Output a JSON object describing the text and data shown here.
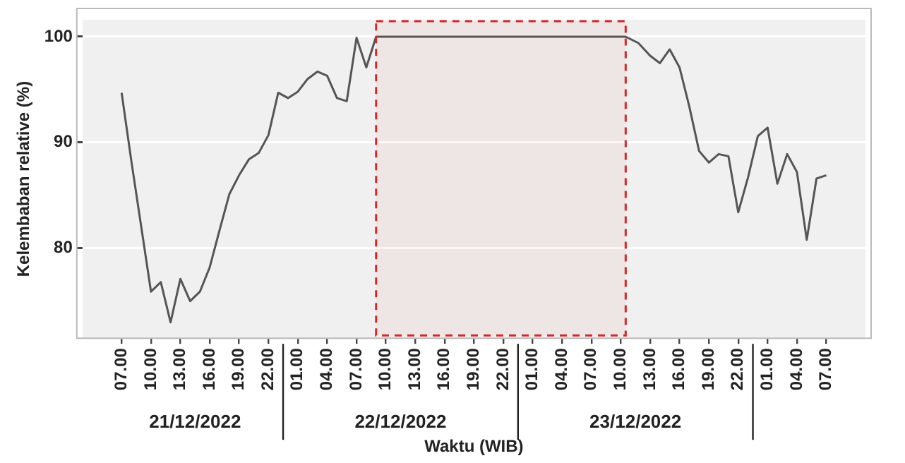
{
  "chart_data": {
    "type": "line",
    "xlabel": "Waktu (WIB)",
    "ylabel": "Kelembaban relative (%)",
    "x": [
      "2022-12-21T07:00",
      "2022-12-21T08:00",
      "2022-12-21T10:00",
      "2022-12-21T11:00",
      "2022-12-21T12:00",
      "2022-12-21T13:00",
      "2022-12-21T14:00",
      "2022-12-21T15:00",
      "2022-12-21T16:00",
      "2022-12-21T17:00",
      "2022-12-21T18:00",
      "2022-12-21T19:00",
      "2022-12-21T20:00",
      "2022-12-21T21:00",
      "2022-12-21T22:00",
      "2022-12-21T23:00",
      "2022-12-22T00:00",
      "2022-12-22T01:00",
      "2022-12-22T02:00",
      "2022-12-22T03:00",
      "2022-12-22T04:00",
      "2022-12-22T05:00",
      "2022-12-22T06:00",
      "2022-12-22T07:00",
      "2022-12-22T08:00",
      "2022-12-22T09:00",
      "2022-12-22T16:00",
      "2022-12-22T21:00",
      "2022-12-23T02:00",
      "2022-12-23T07:00",
      "2022-12-23T10:30",
      "2022-12-23T11:48",
      "2022-12-23T13:00",
      "2022-12-23T14:00",
      "2022-12-23T15:00",
      "2022-12-23T16:00",
      "2022-12-23T17:00",
      "2022-12-23T18:00",
      "2022-12-23T19:00",
      "2022-12-23T20:00",
      "2022-12-23T21:00",
      "2022-12-23T22:00",
      "2022-12-23T23:00",
      "2022-12-24T00:00",
      "2022-12-24T01:00",
      "2022-12-24T02:00",
      "2022-12-24T03:00",
      "2022-12-24T04:00",
      "2022-12-24T05:00",
      "2022-12-24T06:00",
      "2022-12-24T07:00"
    ],
    "series": [
      {
        "color": "#555555",
        "values": [
          94.7,
          88.2,
          75.9,
          76.8,
          73.0,
          77.1,
          75.0,
          75.9,
          78.2,
          81.7,
          85.1,
          86.9,
          88.4,
          89.0,
          90.7,
          94.7,
          94.2,
          94.8,
          96.0,
          96.7,
          96.3,
          94.2,
          93.9,
          99.9,
          97.1,
          100,
          100,
          100,
          100,
          100,
          100,
          99.4,
          98.2,
          97.5,
          98.8,
          97.1,
          93.4,
          89.2,
          88.1,
          88.9,
          88.7,
          83.4,
          86.7,
          90.6,
          91.4,
          86.1,
          88.9,
          87.2,
          80.8,
          86.6,
          86.9
        ]
      }
    ],
    "xlim": [
      "2022-12-21T03:00",
      "2022-12-24T11:00"
    ],
    "ylim": [
      71.5,
      101.6
    ],
    "xticks": [
      {
        "value": "2022-12-21T07:00",
        "label": "07.00"
      },
      {
        "value": "2022-12-21T10:00",
        "label": "10.00"
      },
      {
        "value": "2022-12-21T13:00",
        "label": "13.00"
      },
      {
        "value": "2022-12-21T16:00",
        "label": "16.00"
      },
      {
        "value": "2022-12-21T19:00",
        "label": "19.00"
      },
      {
        "value": "2022-12-21T22:00",
        "label": "22.00"
      },
      {
        "value": "2022-12-22T01:00",
        "label": "01.00"
      },
      {
        "value": "2022-12-22T04:00",
        "label": "04.00"
      },
      {
        "value": "2022-12-22T07:00",
        "label": "07.00"
      },
      {
        "value": "2022-12-22T10:00",
        "label": "10.00"
      },
      {
        "value": "2022-12-22T13:00",
        "label": "13.00"
      },
      {
        "value": "2022-12-22T16:00",
        "label": "16.00"
      },
      {
        "value": "2022-12-22T19:00",
        "label": "19.00"
      },
      {
        "value": "2022-12-22T22:00",
        "label": "22.00"
      },
      {
        "value": "2022-12-23T01:00",
        "label": "01.00"
      },
      {
        "value": "2022-12-23T04:00",
        "label": "04.00"
      },
      {
        "value": "2022-12-23T07:00",
        "label": "07.00"
      },
      {
        "value": "2022-12-23T10:00",
        "label": "10.00"
      },
      {
        "value": "2022-12-23T13:00",
        "label": "13.00"
      },
      {
        "value": "2022-12-23T16:00",
        "label": "16.00"
      },
      {
        "value": "2022-12-23T19:00",
        "label": "19.00"
      },
      {
        "value": "2022-12-23T22:00",
        "label": "22.00"
      },
      {
        "value": "2022-12-24T01:00",
        "label": "01.00"
      },
      {
        "value": "2022-12-24T04:00",
        "label": "04.00"
      },
      {
        "value": "2022-12-24T07:00",
        "label": "07.00"
      }
    ],
    "yticks": [
      80,
      90,
      100
    ],
    "grid": "y",
    "annotations": [
      "21/12/2022",
      "22/12/2022",
      "23/12/2022"
    ],
    "bands": [
      {
        "axis": "x",
        "from": "2022-12-22T09:00",
        "to": "2022-12-23T10:30",
        "color": "#d62728"
      }
    ]
  }
}
